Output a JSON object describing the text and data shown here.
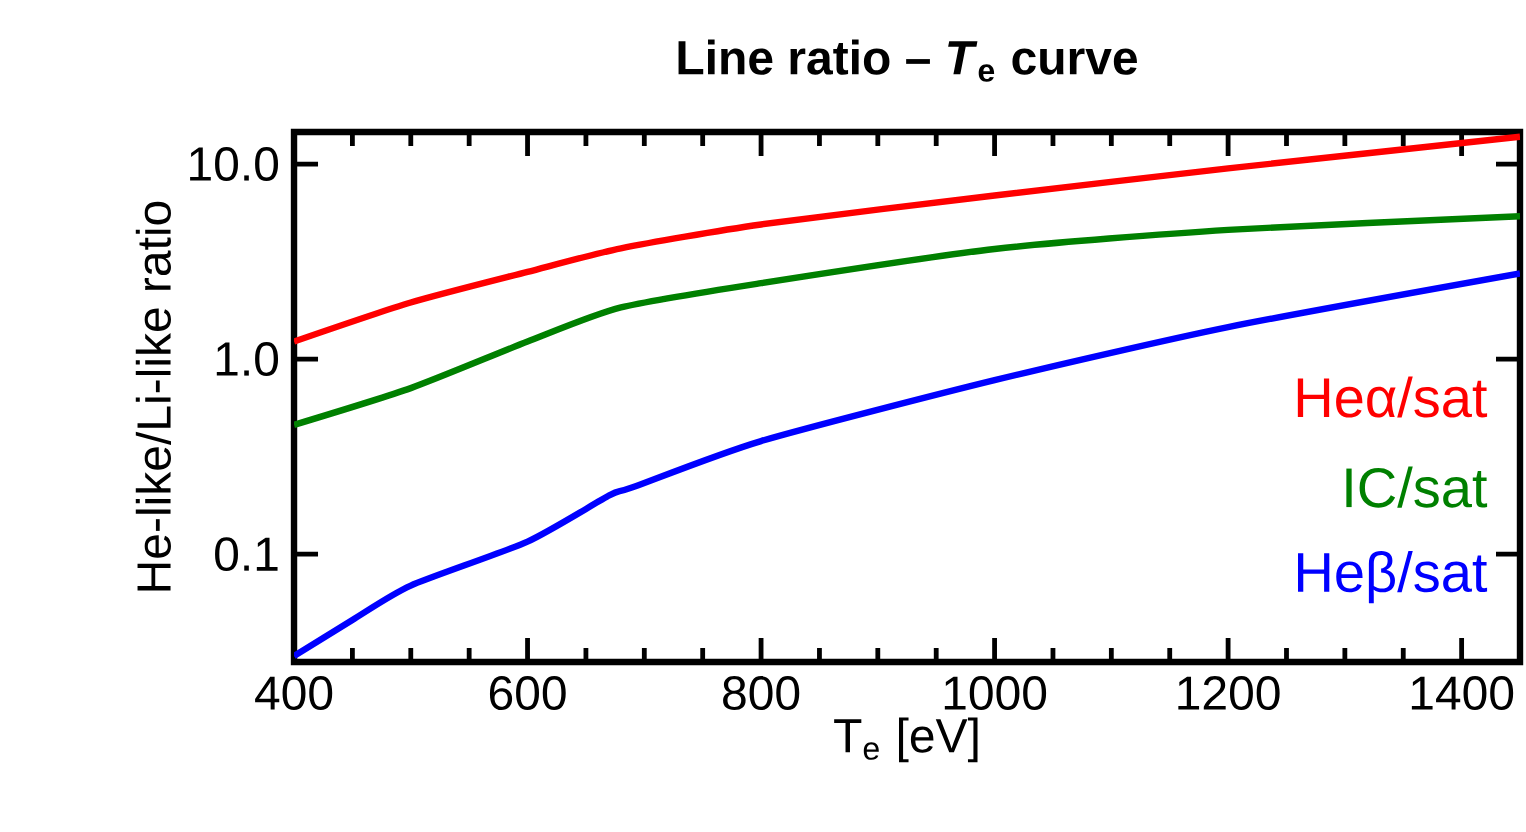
{
  "chart_data": {
    "type": "line",
    "title": "Line ratio – *T*$_{e}$ curve",
    "xlabel": "T$_{e}$ [eV]",
    "ylabel": "He-like/Li-like ratio",
    "log": "y",
    "xlim": [
      400,
      1450
    ],
    "ylim": [
      0.028,
      14.6
    ],
    "xticks": [
      400,
      600,
      800,
      1000,
      1200,
      1400
    ],
    "yticks": [
      {
        "value": 0.1,
        "label": "0.1"
      },
      {
        "value": 1,
        "label": "1.0"
      },
      {
        "value": 10,
        "label": "10.0"
      }
    ],
    "grid": false,
    "legend": false,
    "marker": "none",
    "line_style": "solid",
    "series": [
      {
        "name": "Heα/sat",
        "color": "#ff0000",
        "x": [
          400,
          500,
          600,
          680,
          800,
          1000,
          1200,
          1450
        ],
        "values": [
          1.23,
          1.95,
          2.8,
          3.7,
          4.9,
          6.9,
          9.5,
          13.8
        ]
      },
      {
        "name": "IC/sat",
        "color": "#008000",
        "x": [
          400,
          500,
          600,
          680,
          800,
          1000,
          1200,
          1450
        ],
        "values": [
          0.46,
          0.71,
          1.23,
          1.84,
          2.45,
          3.67,
          4.6,
          5.4
        ]
      },
      {
        "name": "Heβ/sat",
        "color": "#0000ff",
        "x": [
          400,
          450,
          500,
          600,
          670,
          690,
          800,
          1000,
          1200,
          1450
        ],
        "values": [
          0.03,
          0.046,
          0.069,
          0.116,
          0.2,
          0.22,
          0.38,
          0.78,
          1.46,
          2.75
        ]
      }
    ]
  }
}
